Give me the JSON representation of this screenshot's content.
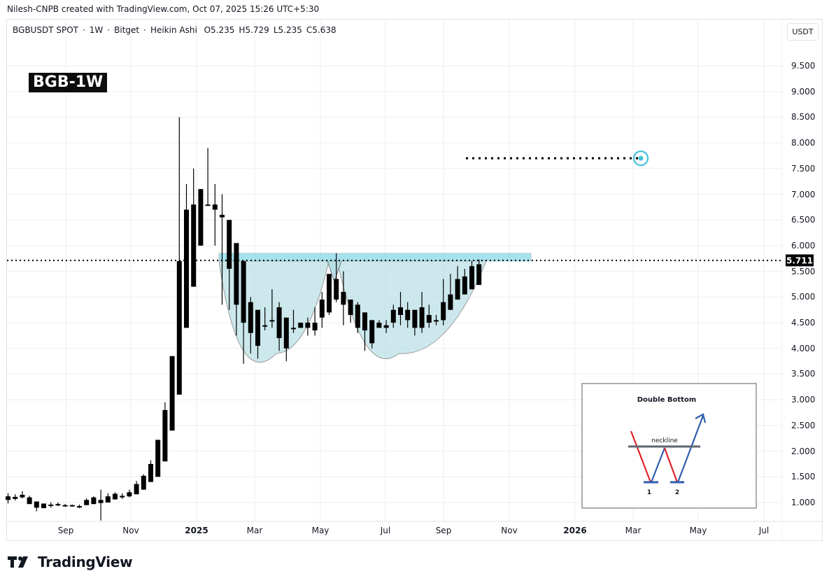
{
  "credit": "Nilesh-CNPB created with TradingView.com, Oct 07, 2025 15:26 UTC+5:30",
  "legend": {
    "symbol": "BGBUSDT SPOT",
    "interval": "1W",
    "exchange": "Bitget",
    "chart_type": "Heikin Ashi",
    "open": "O5.235",
    "high": "H5.729",
    "low": "L5.235",
    "close": "C5.638",
    "separator": "·"
  },
  "title_badge": "BGB-1W",
  "currency": "USDT",
  "current_price": "5.711",
  "target_price": 7.7,
  "brand": "TradingView",
  "inset": {
    "title": "Double Bottom",
    "neckline_label": "neckline",
    "bottom_1": "1",
    "bottom_2": "2"
  },
  "colors": {
    "candle": "#000000",
    "pattern_fill": "#b2dde4",
    "neckline_zone": "#8fdcea",
    "target_circle": "#44c3d9",
    "inset_red": "#e3242b",
    "inset_blue": "#2f5dae",
    "inset_neckline": "#5d6670",
    "grid": "#eeeeee"
  },
  "chart_data": {
    "type": "candlestick",
    "title": "BGBUSDT SPOT · 1W · Bitget · Heikin Ashi",
    "xlabel": "",
    "ylabel": "USDT",
    "ylim": [
      0.65,
      10.1
    ],
    "y_ticks": [
      "9.500",
      "9.000",
      "8.500",
      "8.000",
      "7.500",
      "7.000",
      "6.500",
      "6.000",
      "5.500",
      "5.000",
      "4.500",
      "4.000",
      "3.500",
      "3.000",
      "2.500",
      "2.000",
      "1.500",
      "1.000"
    ],
    "x_ticks": [
      "Sep",
      "Nov",
      "2025",
      "Mar",
      "May",
      "Jul",
      "Sep",
      "Nov",
      "2026",
      "Mar",
      "May",
      "Jul"
    ],
    "grid": true,
    "annotations": [
      {
        "type": "horizontal_dotted_line",
        "price": 5.711,
        "label": "5.711"
      },
      {
        "type": "neckline_zone",
        "from": 5.7,
        "to": 5.85
      },
      {
        "type": "double_bottom_shading",
        "bottom_1_low": 3.9,
        "bottom_2_low": 3.9,
        "neckline": 5.7
      },
      {
        "type": "target_dotted_line",
        "price": 7.7,
        "marker": "circle"
      }
    ],
    "candles": [
      {
        "o": 1.12,
        "h": 1.18,
        "l": 0.98,
        "c": 1.05
      },
      {
        "o": 1.07,
        "h": 1.16,
        "l": 1.04,
        "c": 1.11
      },
      {
        "o": 1.1,
        "h": 1.22,
        "l": 1.08,
        "c": 1.15
      },
      {
        "o": 1.1,
        "h": 1.13,
        "l": 0.97,
        "c": 0.97
      },
      {
        "o": 1.02,
        "h": 1.02,
        "l": 0.83,
        "c": 0.9
      },
      {
        "o": 0.98,
        "h": 0.98,
        "l": 0.89,
        "c": 0.89
      },
      {
        "o": 0.96,
        "h": 1.0,
        "l": 0.9,
        "c": 0.94
      },
      {
        "o": 0.97,
        "h": 1.0,
        "l": 0.93,
        "c": 0.95
      },
      {
        "o": 0.95,
        "h": 0.97,
        "l": 0.92,
        "c": 0.93
      },
      {
        "o": 0.95,
        "h": 0.96,
        "l": 0.92,
        "c": 0.93
      },
      {
        "o": 0.93,
        "h": 0.96,
        "l": 0.89,
        "c": 0.93
      },
      {
        "o": 0.95,
        "h": 1.08,
        "l": 0.95,
        "c": 1.05
      },
      {
        "o": 0.97,
        "h": 1.12,
        "l": 0.97,
        "c": 1.1
      },
      {
        "o": 1.05,
        "h": 1.25,
        "l": 0.65,
        "c": 0.99
      },
      {
        "o": 1.0,
        "h": 1.18,
        "l": 1.0,
        "c": 1.12
      },
      {
        "o": 1.06,
        "h": 1.2,
        "l": 1.06,
        "c": 1.17
      },
      {
        "o": 1.1,
        "h": 1.18,
        "l": 1.07,
        "c": 1.13
      },
      {
        "o": 1.12,
        "h": 1.25,
        "l": 1.1,
        "c": 1.2
      },
      {
        "o": 1.16,
        "h": 1.42,
        "l": 1.16,
        "c": 1.36
      },
      {
        "o": 1.25,
        "h": 1.55,
        "l": 1.25,
        "c": 1.52
      },
      {
        "o": 1.4,
        "h": 1.82,
        "l": 1.4,
        "c": 1.75
      },
      {
        "o": 1.5,
        "h": 2.2,
        "l": 1.5,
        "c": 2.22
      },
      {
        "o": 1.8,
        "h": 2.95,
        "l": 1.8,
        "c": 2.8
      },
      {
        "o": 2.4,
        "h": 3.5,
        "l": 2.4,
        "c": 3.85
      },
      {
        "o": 3.1,
        "h": 8.5,
        "l": 3.1,
        "c": 5.7
      },
      {
        "o": 4.4,
        "h": 7.2,
        "l": 4.4,
        "c": 6.7
      },
      {
        "o": 5.2,
        "h": 7.5,
        "l": 5.2,
        "c": 6.8
      },
      {
        "o": 6.0,
        "h": 7.1,
        "l": 6.0,
        "c": 7.1
      },
      {
        "o": 6.8,
        "h": 7.9,
        "l": 6.8,
        "c": 6.8
      },
      {
        "o": 6.7,
        "h": 7.2,
        "l": 6.0,
        "c": 6.8
      },
      {
        "o": 6.55,
        "h": 7.0,
        "l": 4.85,
        "c": 6.6
      },
      {
        "o": 5.55,
        "h": 6.0,
        "l": 4.75,
        "c": 6.5
      },
      {
        "o": 4.85,
        "h": 6.0,
        "l": 4.25,
        "c": 6.05
      },
      {
        "o": 4.5,
        "h": 5.2,
        "l": 3.7,
        "c": 5.7
      },
      {
        "o": 4.3,
        "h": 5.0,
        "l": 3.9,
        "c": 4.9
      },
      {
        "o": 4.05,
        "h": 4.7,
        "l": 3.8,
        "c": 4.75
      },
      {
        "o": 4.45,
        "h": 4.8,
        "l": 4.35,
        "c": 4.45
      },
      {
        "o": 4.55,
        "h": 5.15,
        "l": 4.4,
        "c": 4.55
      },
      {
        "o": 4.2,
        "h": 4.9,
        "l": 3.95,
        "c": 4.8
      },
      {
        "o": 4.0,
        "h": 4.55,
        "l": 3.75,
        "c": 4.6
      },
      {
        "o": 4.4,
        "h": 4.75,
        "l": 4.3,
        "c": 4.4
      },
      {
        "o": 4.5,
        "h": 4.5,
        "l": 4.4,
        "c": 4.4
      },
      {
        "o": 4.4,
        "h": 4.6,
        "l": 4.25,
        "c": 4.5
      },
      {
        "o": 4.35,
        "h": 4.8,
        "l": 4.25,
        "c": 4.5
      },
      {
        "o": 4.6,
        "h": 5.1,
        "l": 4.4,
        "c": 4.95
      },
      {
        "o": 4.7,
        "h": 5.35,
        "l": 4.65,
        "c": 5.45
      },
      {
        "o": 4.95,
        "h": 5.85,
        "l": 4.9,
        "c": 5.35
      },
      {
        "o": 4.85,
        "h": 5.5,
        "l": 4.45,
        "c": 5.1
      },
      {
        "o": 4.65,
        "h": 4.95,
        "l": 4.5,
        "c": 4.95
      },
      {
        "o": 4.4,
        "h": 4.9,
        "l": 4.3,
        "c": 4.85
      },
      {
        "o": 4.35,
        "h": 4.65,
        "l": 3.95,
        "c": 4.7
      },
      {
        "o": 4.1,
        "h": 4.55,
        "l": 4.0,
        "c": 4.55
      },
      {
        "o": 4.5,
        "h": 4.55,
        "l": 4.4,
        "c": 4.4
      },
      {
        "o": 4.4,
        "h": 4.55,
        "l": 4.3,
        "c": 4.45
      },
      {
        "o": 4.5,
        "h": 4.85,
        "l": 4.4,
        "c": 4.75
      },
      {
        "o": 4.65,
        "h": 5.1,
        "l": 4.45,
        "c": 4.8
      },
      {
        "o": 4.55,
        "h": 4.9,
        "l": 4.4,
        "c": 4.75
      },
      {
        "o": 4.4,
        "h": 4.7,
        "l": 4.25,
        "c": 4.75
      },
      {
        "o": 4.4,
        "h": 5.1,
        "l": 4.3,
        "c": 4.8
      },
      {
        "o": 4.5,
        "h": 4.85,
        "l": 4.4,
        "c": 4.65
      },
      {
        "o": 4.55,
        "h": 4.65,
        "l": 4.45,
        "c": 4.55
      },
      {
        "o": 4.55,
        "h": 5.35,
        "l": 4.45,
        "c": 4.9
      },
      {
        "o": 4.75,
        "h": 5.45,
        "l": 4.75,
        "c": 5.05
      },
      {
        "o": 4.95,
        "h": 5.6,
        "l": 4.95,
        "c": 5.35
      },
      {
        "o": 5.05,
        "h": 5.55,
        "l": 5.05,
        "c": 5.4
      },
      {
        "o": 5.15,
        "h": 5.7,
        "l": 5.15,
        "c": 5.6
      },
      {
        "o": 5.235,
        "h": 5.729,
        "l": 5.235,
        "c": 5.638
      }
    ]
  }
}
